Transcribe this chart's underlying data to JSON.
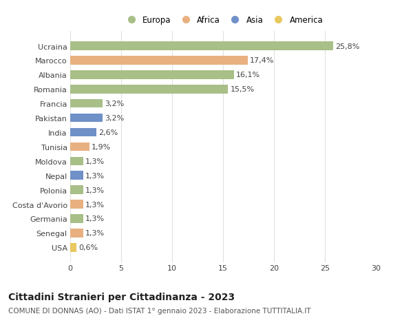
{
  "title": "Cittadini Stranieri per Cittadinanza - 2023",
  "subtitle": "COMUNE DI DONNAS (AO) - Dati ISTAT 1° gennaio 2023 - Elaborazione TUTTITALIA.IT",
  "countries": [
    "USA",
    "Senegal",
    "Germania",
    "Costa d'Avorio",
    "Polonia",
    "Nepal",
    "Moldova",
    "Tunisia",
    "India",
    "Pakistan",
    "Francia",
    "Romania",
    "Albania",
    "Marocco",
    "Ucraina"
  ],
  "values": [
    0.6,
    1.3,
    1.3,
    1.3,
    1.3,
    1.3,
    1.3,
    1.9,
    2.6,
    3.2,
    3.2,
    15.5,
    16.1,
    17.4,
    25.8
  ],
  "continents": [
    "America",
    "Africa",
    "Europa",
    "Africa",
    "Europa",
    "Asia",
    "Europa",
    "Africa",
    "Asia",
    "Asia",
    "Europa",
    "Europa",
    "Europa",
    "Africa",
    "Europa"
  ],
  "continent_colors": {
    "Europa": "#a8bf88",
    "Africa": "#e8b080",
    "Asia": "#7090c8",
    "America": "#e8c860"
  },
  "bar_height": 0.6,
  "xlim": [
    0,
    30
  ],
  "xticks": [
    0,
    5,
    10,
    15,
    20,
    25,
    30
  ],
  "background_color": "#ffffff",
  "grid_color": "#e0e0e0",
  "label_fontsize": 8,
  "tick_fontsize": 8,
  "title_fontsize": 10,
  "subtitle_fontsize": 7.5
}
